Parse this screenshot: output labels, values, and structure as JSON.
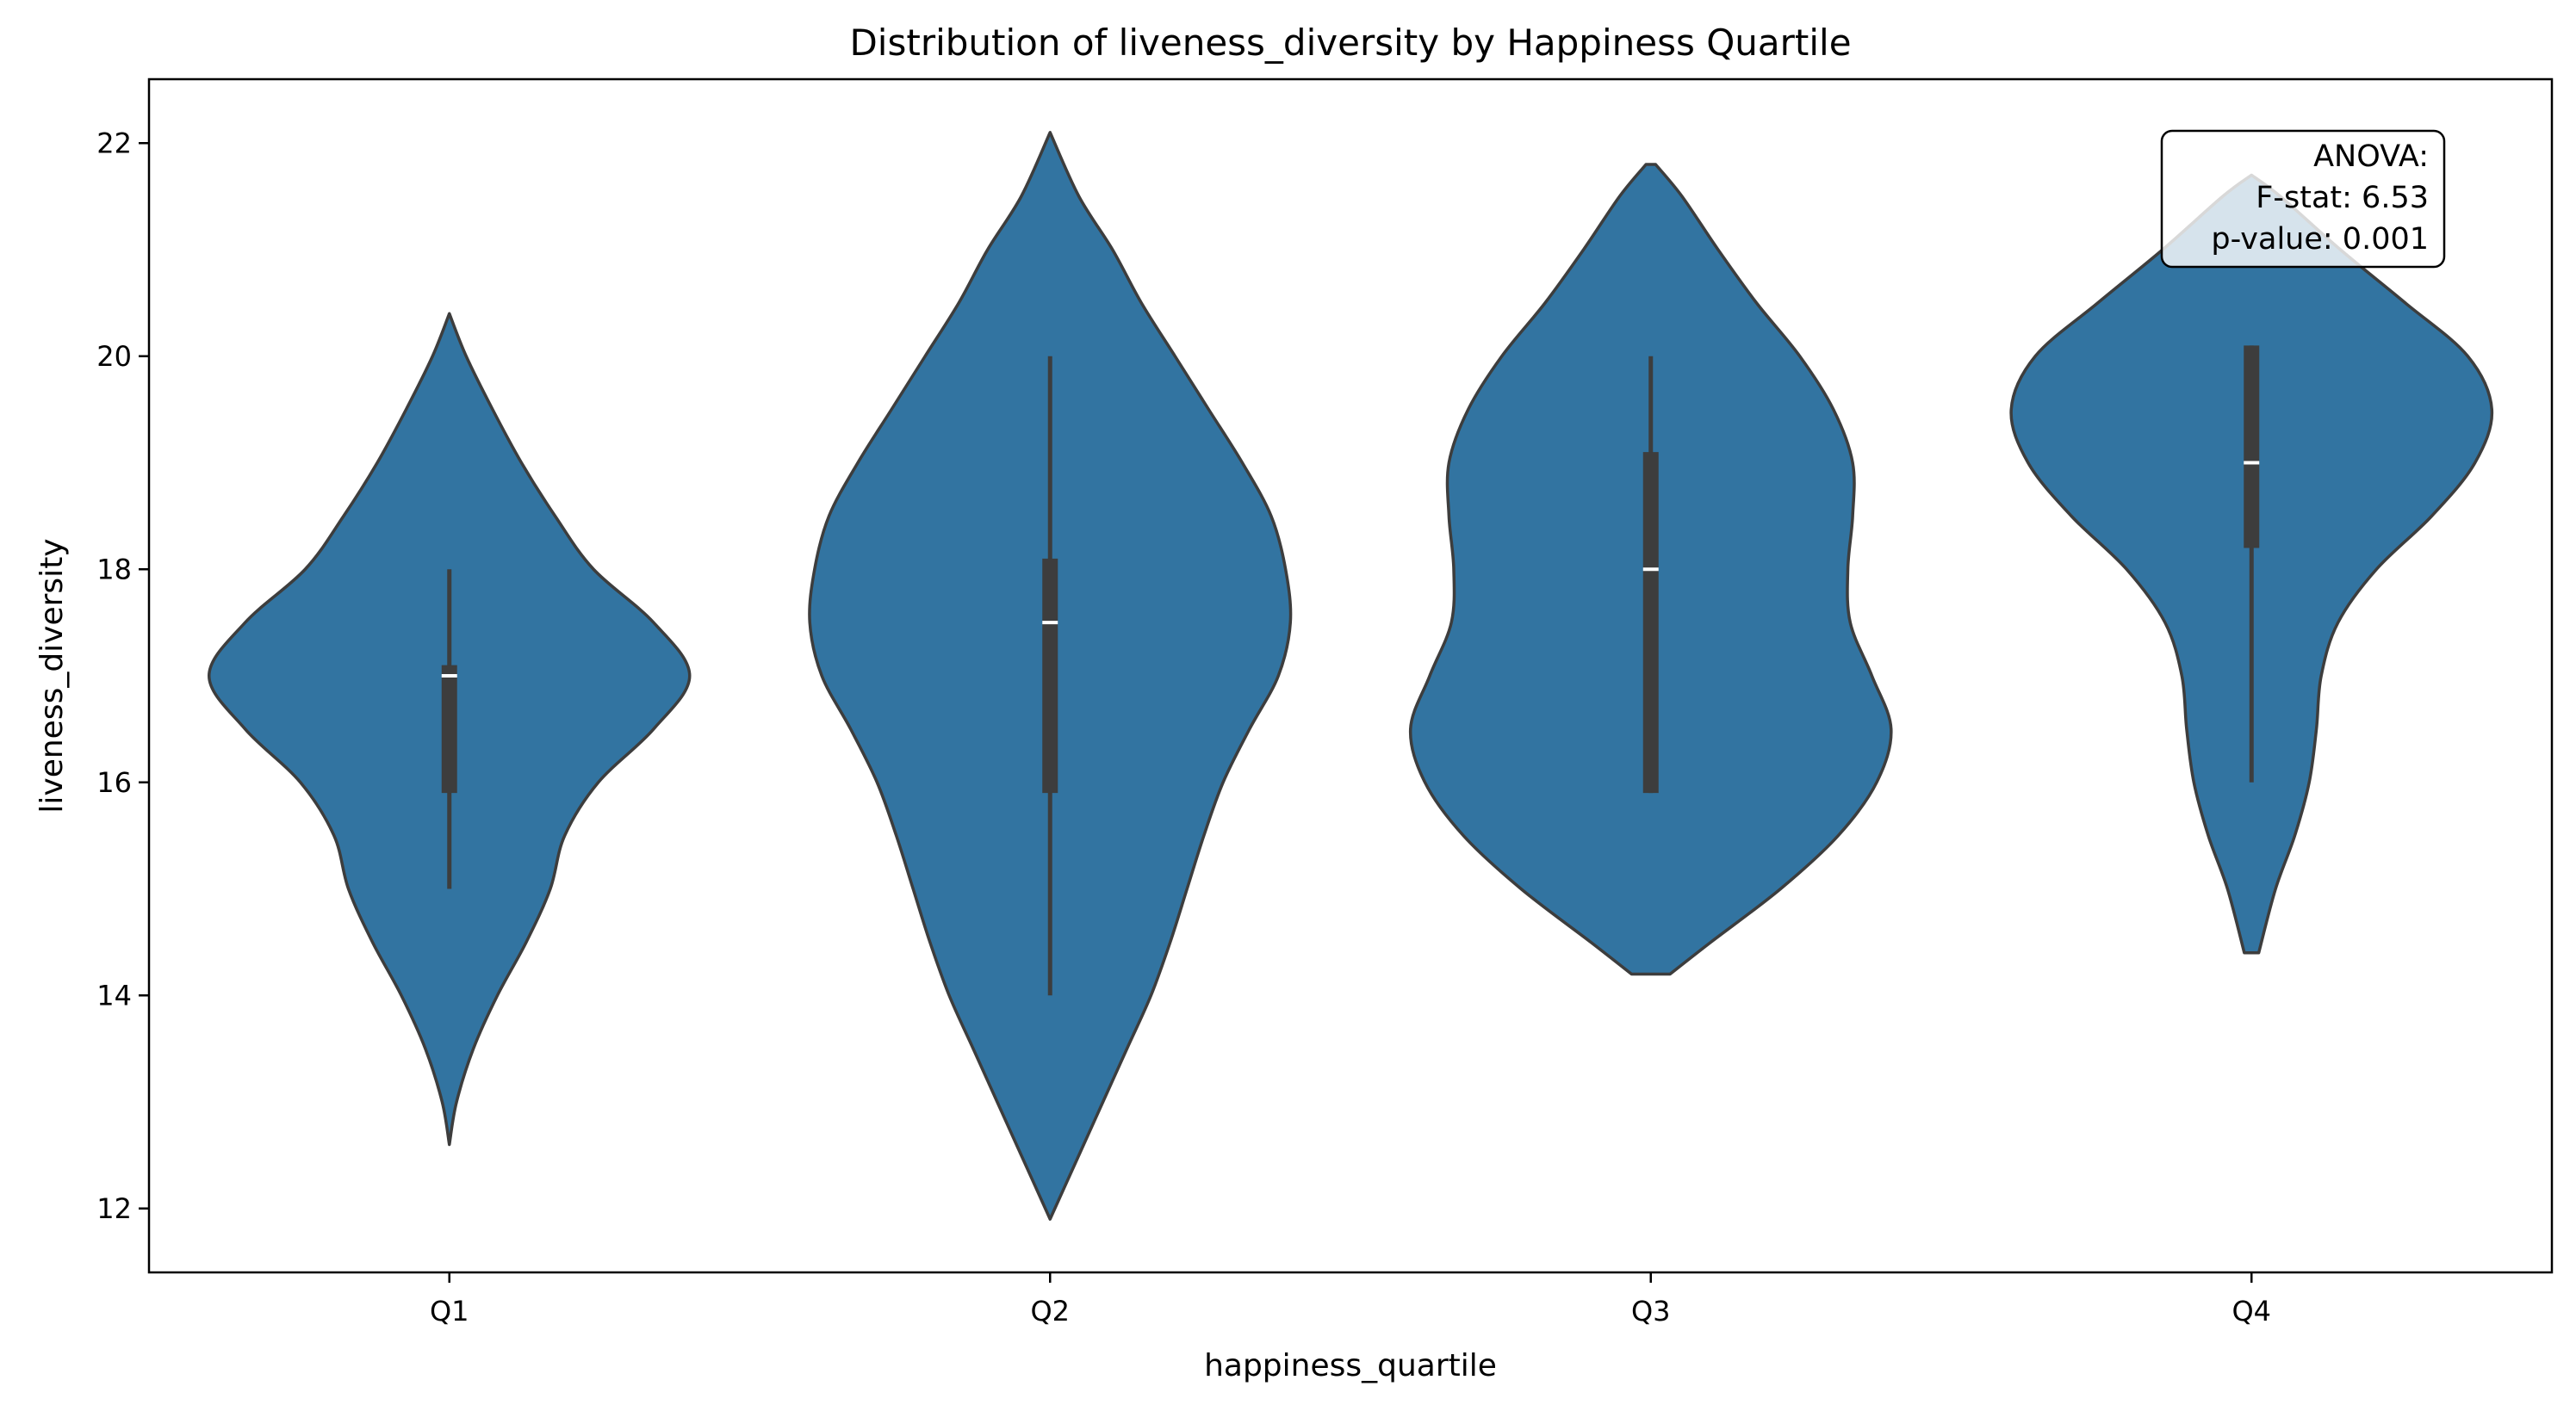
{
  "chart_data": {
    "type": "violin",
    "title": "Distribution of liveness_diversity by Happiness Quartile",
    "xlabel": "happiness_quartile",
    "ylabel": "liveness_diversity",
    "categories": [
      "Q1",
      "Q2",
      "Q3",
      "Q4"
    ],
    "ylim": [
      11.4,
      22.6
    ],
    "yticks": [
      12,
      14,
      16,
      18,
      20,
      22
    ],
    "ytick_labels": [
      "12",
      "14",
      "16",
      "18",
      "20",
      "22"
    ],
    "grid": false,
    "violin_color": "#3274a1",
    "edge_color": "#3d3d3d",
    "box_color": "#3d3d3d",
    "median_color": "#ffffff",
    "violins": [
      {
        "category": "Q1",
        "median": 17.0,
        "q1": 15.9,
        "q3": 17.1,
        "whisker_low": 15.0,
        "whisker_high": 18.0,
        "density": [
          [
            12.6,
            0.0
          ],
          [
            13.0,
            0.03
          ],
          [
            13.5,
            0.1
          ],
          [
            14.0,
            0.2
          ],
          [
            14.5,
            0.32
          ],
          [
            15.0,
            0.42
          ],
          [
            15.5,
            0.48
          ],
          [
            16.0,
            0.62
          ],
          [
            16.5,
            0.85
          ],
          [
            17.0,
            1.0
          ],
          [
            17.5,
            0.85
          ],
          [
            18.0,
            0.6
          ],
          [
            18.5,
            0.44
          ],
          [
            19.0,
            0.3
          ],
          [
            19.5,
            0.18
          ],
          [
            20.0,
            0.07
          ],
          [
            20.4,
            0.0
          ]
        ]
      },
      {
        "category": "Q2",
        "median": 17.5,
        "q1": 15.9,
        "q3": 18.1,
        "whisker_low": 14.0,
        "whisker_high": 20.0,
        "density": [
          [
            11.9,
            0.0
          ],
          [
            12.5,
            0.12
          ],
          [
            13.0,
            0.22
          ],
          [
            13.5,
            0.32
          ],
          [
            14.0,
            0.42
          ],
          [
            14.5,
            0.5
          ],
          [
            15.0,
            0.57
          ],
          [
            15.5,
            0.64
          ],
          [
            16.0,
            0.72
          ],
          [
            16.5,
            0.83
          ],
          [
            17.0,
            0.95
          ],
          [
            17.5,
            1.0
          ],
          [
            18.0,
            0.98
          ],
          [
            18.5,
            0.92
          ],
          [
            19.0,
            0.8
          ],
          [
            19.5,
            0.66
          ],
          [
            20.0,
            0.52
          ],
          [
            20.5,
            0.38
          ],
          [
            21.0,
            0.26
          ],
          [
            21.5,
            0.12
          ],
          [
            22.1,
            0.0
          ]
        ]
      },
      {
        "category": "Q3",
        "median": 18.0,
        "q1": 15.9,
        "q3": 19.1,
        "whisker_low": 15.9,
        "whisker_high": 20.0,
        "density": [
          [
            14.2,
            0.08
          ],
          [
            14.5,
            0.25
          ],
          [
            15.0,
            0.54
          ],
          [
            15.5,
            0.78
          ],
          [
            16.0,
            0.94
          ],
          [
            16.5,
            1.0
          ],
          [
            17.0,
            0.92
          ],
          [
            17.5,
            0.83
          ],
          [
            18.0,
            0.82
          ],
          [
            18.5,
            0.84
          ],
          [
            19.0,
            0.84
          ],
          [
            19.5,
            0.76
          ],
          [
            20.0,
            0.62
          ],
          [
            20.5,
            0.44
          ],
          [
            21.0,
            0.28
          ],
          [
            21.5,
            0.13
          ],
          [
            21.8,
            0.02
          ]
        ]
      },
      {
        "category": "Q4",
        "median": 19.0,
        "q1": 18.2,
        "q3": 20.1,
        "whisker_low": 16.0,
        "whisker_high": 20.1,
        "density": [
          [
            14.4,
            0.03
          ],
          [
            15.0,
            0.1
          ],
          [
            15.5,
            0.18
          ],
          [
            16.0,
            0.24
          ],
          [
            16.5,
            0.27
          ],
          [
            17.0,
            0.29
          ],
          [
            17.5,
            0.36
          ],
          [
            18.0,
            0.52
          ],
          [
            18.5,
            0.75
          ],
          [
            19.0,
            0.93
          ],
          [
            19.5,
            1.0
          ],
          [
            20.0,
            0.9
          ],
          [
            20.5,
            0.64
          ],
          [
            21.0,
            0.37
          ],
          [
            21.5,
            0.12
          ],
          [
            21.7,
            0.0
          ]
        ]
      }
    ],
    "annotation": {
      "lines": [
        "ANOVA:",
        "F-stat: 6.53",
        "p-value: 0.001"
      ],
      "position": "top-right"
    }
  }
}
